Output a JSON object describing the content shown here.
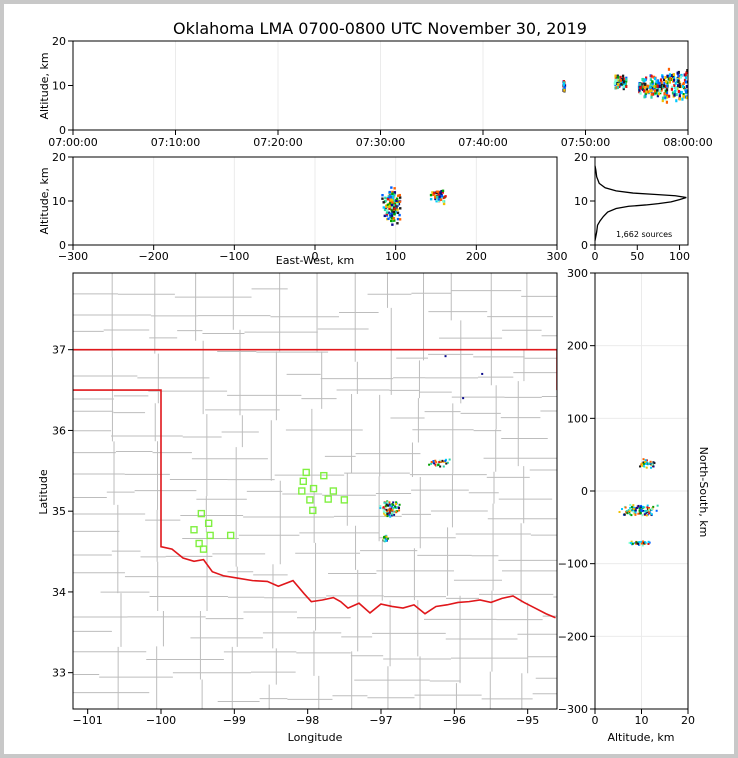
{
  "title": "Oklahoma LMA 0700-0800 UTC November 30, 2019",
  "colors": {
    "border": "#e0171b",
    "station": "#80f040",
    "grid": "#c8c8c8",
    "county": "#bdbdbd"
  },
  "chart_data": [
    {
      "id": "time_height",
      "type": "scatter",
      "xlabel": "",
      "ylabel": "Altitude, km",
      "xticks": [
        "07:00:00",
        "07:10:00",
        "07:20:00",
        "07:30:00",
        "07:40:00",
        "07:50:00",
        "08:00:00"
      ],
      "xlim_minutes": [
        0,
        60
      ],
      "ylim": [
        0,
        20
      ],
      "yticks": [
        0,
        10,
        20
      ],
      "clusters": [
        {
          "t": [
            47.8,
            48.0
          ],
          "alt": [
            7.5,
            11.5
          ]
        },
        {
          "t": [
            52.8,
            54.0
          ],
          "alt": [
            9.0,
            12.5
          ]
        },
        {
          "t": [
            55.2,
            57.5
          ],
          "alt": [
            7.0,
            12.5
          ]
        },
        {
          "t": [
            57.5,
            60.0
          ],
          "alt": [
            6.0,
            14.0
          ]
        }
      ]
    },
    {
      "id": "east_west_altitude",
      "type": "scatter",
      "xlabel": "East-West, km",
      "ylabel": "Altitude, km",
      "xlim": [
        -300,
        300
      ],
      "xticks": [
        -300,
        -200,
        -100,
        0,
        100,
        200,
        300
      ],
      "ylim": [
        0,
        20
      ],
      "yticks": [
        0,
        10,
        20
      ],
      "clusters": [
        {
          "x": [
            82,
            108
          ],
          "alt": [
            4,
            14
          ]
        },
        {
          "x": [
            143,
            162
          ],
          "alt": [
            9,
            13
          ]
        }
      ]
    },
    {
      "id": "altitude_histogram",
      "type": "line",
      "xlim": [
        0,
        110
      ],
      "xticks": [
        0,
        50,
        100
      ],
      "ylim": [
        0,
        20
      ],
      "yticks": [
        0,
        10,
        20
      ],
      "annotation": "1,662 sources",
      "profile": [
        [
          0,
          1
        ],
        [
          2,
          3
        ],
        [
          3,
          4.5
        ],
        [
          6,
          5.5
        ],
        [
          10,
          6.5
        ],
        [
          15,
          7.5
        ],
        [
          25,
          8.3
        ],
        [
          40,
          8.8
        ],
        [
          60,
          9.1
        ],
        [
          75,
          9.4
        ],
        [
          90,
          9.8
        ],
        [
          100,
          10.3
        ],
        [
          108,
          10.8
        ],
        [
          95,
          11.2
        ],
        [
          70,
          11.5
        ],
        [
          45,
          11.8
        ],
        [
          25,
          12.3
        ],
        [
          12,
          13
        ],
        [
          5,
          14
        ],
        [
          2,
          15.5
        ],
        [
          1,
          17
        ],
        [
          0,
          18
        ]
      ]
    },
    {
      "id": "plan_view",
      "type": "scatter",
      "xlabel": "Longitude",
      "ylabel": "Latitude",
      "xlim": [
        -101.2,
        -94.6
      ],
      "xticks": [
        -101,
        -100,
        -99,
        -98,
        -97,
        -96,
        -95
      ],
      "ylim": [
        32.55,
        37.95
      ],
      "yticks": [
        33,
        34,
        35,
        36,
        37
      ],
      "stations": [
        [
          -99.45,
          34.97
        ],
        [
          -99.35,
          34.85
        ],
        [
          -99.55,
          34.77
        ],
        [
          -99.33,
          34.7
        ],
        [
          -99.48,
          34.6
        ],
        [
          -99.42,
          34.53
        ],
        [
          -99.05,
          34.7
        ],
        [
          -98.02,
          35.48
        ],
        [
          -98.06,
          35.37
        ],
        [
          -98.08,
          35.25
        ],
        [
          -97.92,
          35.28
        ],
        [
          -97.78,
          35.44
        ],
        [
          -97.65,
          35.25
        ],
        [
          -97.72,
          35.15
        ],
        [
          -97.5,
          35.14
        ],
        [
          -97.97,
          35.14
        ],
        [
          -97.93,
          35.01
        ]
      ],
      "clusters": [
        {
          "lon": [
            -97.03,
            -96.72
          ],
          "lat": [
            34.92,
            35.13
          ]
        },
        {
          "lon": [
            -96.98,
            -96.9
          ],
          "lat": [
            34.62,
            34.7
          ]
        },
        {
          "lon": [
            -96.36,
            -96.05
          ],
          "lat": [
            35.55,
            35.65
          ]
        }
      ],
      "isolated": [
        [
          -96.12,
          36.92
        ],
        [
          -95.62,
          36.7
        ],
        [
          -95.88,
          36.4
        ]
      ]
    },
    {
      "id": "altitude_north_south",
      "type": "scatter",
      "xlabel": "Altitude, km",
      "ylabel": "North-South, km",
      "xlim": [
        0,
        20
      ],
      "xticks": [
        0,
        10,
        20
      ],
      "ylim": [
        -300,
        300
      ],
      "yticks": [
        -300,
        -200,
        -100,
        0,
        100,
        200,
        300
      ],
      "clusters": [
        {
          "alt": [
            5,
            14
          ],
          "ns": [
            -35,
            -18
          ]
        },
        {
          "alt": [
            7,
            12
          ],
          "ns": [
            -75,
            -68
          ]
        },
        {
          "alt": [
            9,
            13
          ],
          "ns": [
            30,
            45
          ]
        }
      ]
    }
  ]
}
